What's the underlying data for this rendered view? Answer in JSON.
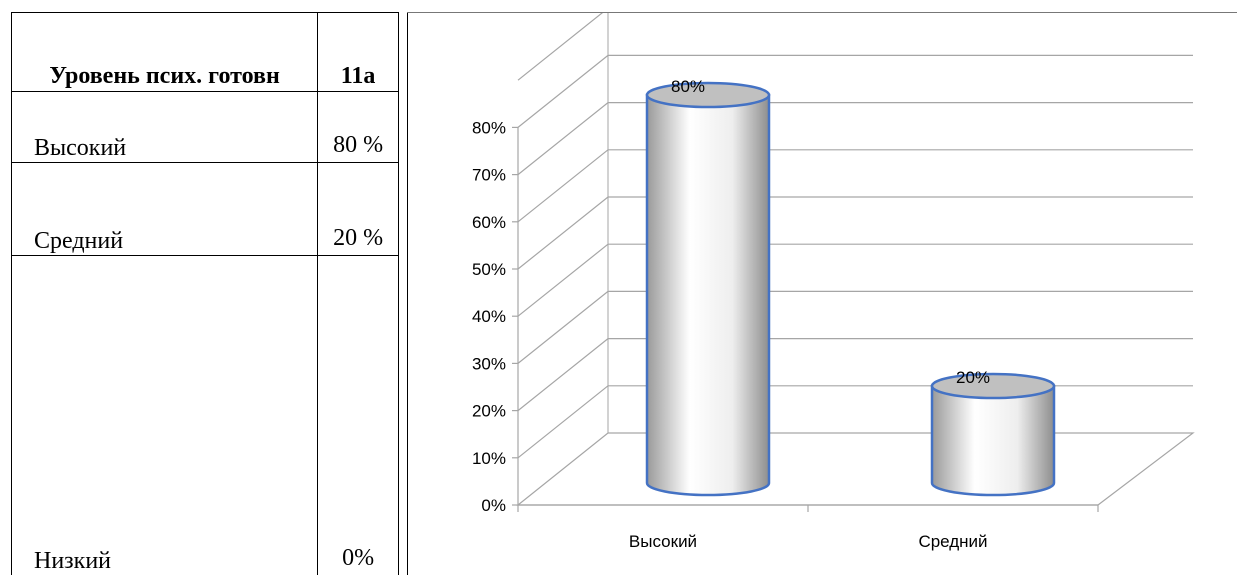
{
  "table": {
    "header": {
      "label": "Уровень псих. готовн",
      "value": "11а"
    },
    "rows": [
      {
        "label": "Высокий",
        "value": "80 %"
      },
      {
        "label": "Средний",
        "value": "20 %"
      },
      {
        "label": "Низкий",
        "value": "0%"
      }
    ]
  },
  "chart_data": {
    "type": "bar",
    "style": "3d-cylinder",
    "categories": [
      "Высокий",
      "Средний"
    ],
    "values": [
      80,
      20
    ],
    "data_labels": [
      "80%",
      "20%"
    ],
    "yticks": [
      "0%",
      "10%",
      "20%",
      "30%",
      "40%",
      "50%",
      "60%",
      "70%",
      "80%"
    ],
    "ylim": [
      0,
      90
    ],
    "grid": true,
    "legend": "none",
    "colors": {
      "bar_fill": "#e8e8e8",
      "bar_stroke": "#4472c4",
      "top_fill": "#c0c0c0",
      "grid": "#a6a6a6"
    }
  }
}
